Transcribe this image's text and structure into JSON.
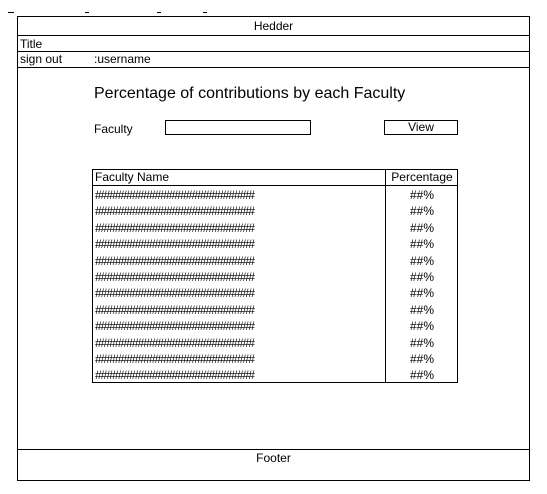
{
  "header": {
    "text": "Hedder"
  },
  "titlebar": {
    "text": "Title"
  },
  "userbar": {
    "signout_label": "sign out",
    "username": ":username"
  },
  "main": {
    "heading": "Percentage of contributions by each Faculty",
    "faculty_label": "Faculty",
    "faculty_input_value": "",
    "view_button_label": "View"
  },
  "table": {
    "headers": {
      "name": "Faculty Name",
      "percentage": "Percentage"
    },
    "rows": [
      {
        "name": "############################",
        "pct": "##%"
      },
      {
        "name": "############################",
        "pct": "##%"
      },
      {
        "name": "############################",
        "pct": "##%"
      },
      {
        "name": "############################",
        "pct": "##%"
      },
      {
        "name": "############################",
        "pct": "##%"
      },
      {
        "name": "############################",
        "pct": "##%"
      },
      {
        "name": "############################",
        "pct": "##%"
      },
      {
        "name": "############################",
        "pct": "##%"
      },
      {
        "name": "############################",
        "pct": "##%"
      },
      {
        "name": "############################",
        "pct": "##%"
      },
      {
        "name": "############################",
        "pct": "##%"
      },
      {
        "name": "############################",
        "pct": "##%"
      }
    ]
  },
  "footer": {
    "text": "Footer"
  }
}
